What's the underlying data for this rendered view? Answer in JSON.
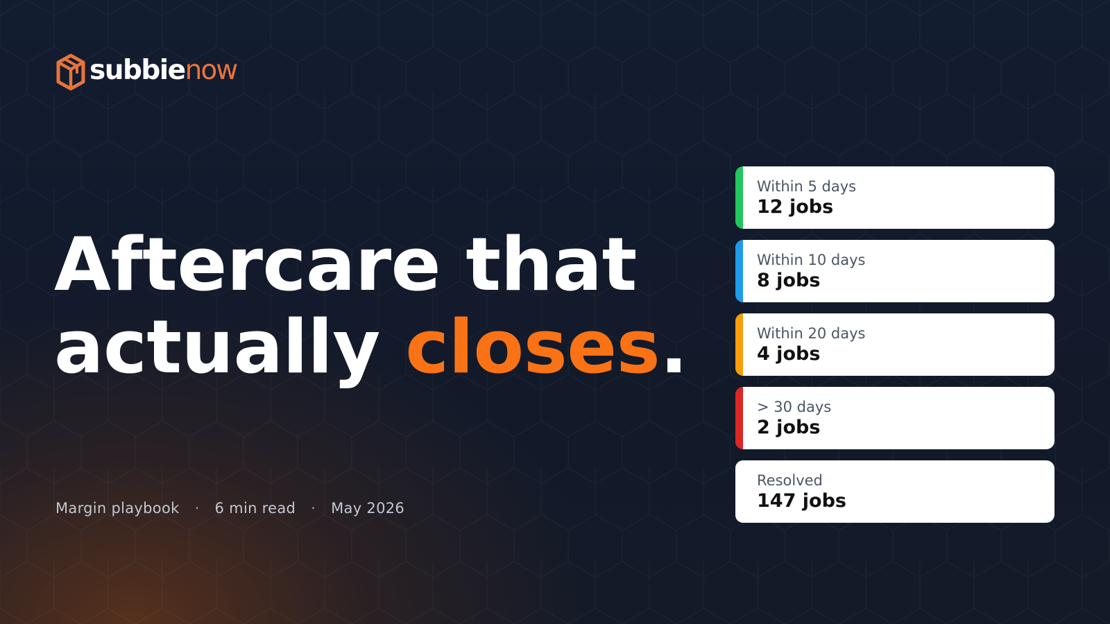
{
  "brand": {
    "name_bold": "subbie",
    "name_light": "now",
    "logo_color": "#e8743a"
  },
  "headline": {
    "line1": "Aftercare that",
    "line2_prefix": "actually ",
    "line2_accent": "closes",
    "line2_suffix": ".",
    "accent_color": "#f97316"
  },
  "meta": {
    "category": "Margin playbook",
    "separator": "·",
    "read_time": "6 min read",
    "date": "May 2026"
  },
  "aging_cards": [
    {
      "label": "Within 5 days",
      "value": "12 jobs",
      "color": "#22c55e"
    },
    {
      "label": "Within 10 days",
      "value": "8 jobs",
      "color": "#1e9be8"
    },
    {
      "label": "Within 20 days",
      "value": "4 jobs",
      "color": "#f59e0b"
    },
    {
      "label": "> 30 days",
      "value": "2 jobs",
      "color": "#dc2626"
    },
    {
      "label": "Resolved",
      "value": "147 jobs",
      "color": "#ffffff"
    }
  ]
}
